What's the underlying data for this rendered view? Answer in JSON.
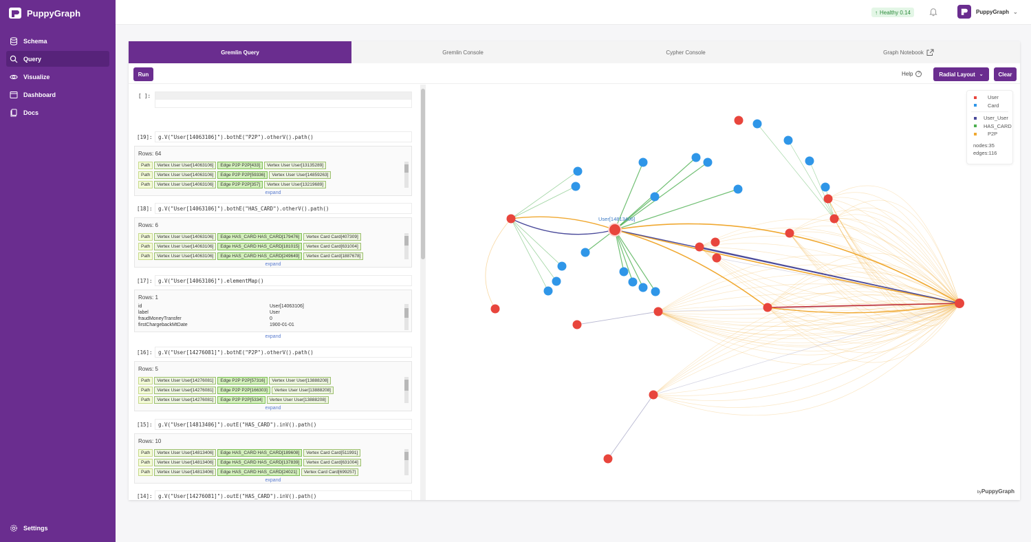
{
  "app": {
    "name": "PuppyGraph"
  },
  "sidebar": {
    "items": [
      {
        "label": "Schema",
        "icon": "database-icon"
      },
      {
        "label": "Query",
        "icon": "search-icon",
        "active": true
      },
      {
        "label": "Visualize",
        "icon": "eye-icon"
      },
      {
        "label": "Dashboard",
        "icon": "dashboard-icon"
      },
      {
        "label": "Docs",
        "icon": "docs-icon"
      }
    ],
    "settings_label": "Settings"
  },
  "header": {
    "health_label": "Healthy 0.14",
    "user_name": "PuppyGraph"
  },
  "tabs": [
    {
      "label": "Gremlin Query",
      "active": true
    },
    {
      "label": "Gremlin Console"
    },
    {
      "label": "Cypher Console"
    },
    {
      "label": "Graph Notebook"
    }
  ],
  "toolbar": {
    "run_label": "Run",
    "help_label": "Help",
    "layout_label": "Radial Layout",
    "clear_label": "Clear"
  },
  "queries": {
    "empty_prompt": "[ ]:",
    "expand_label": "expand",
    "q19": {
      "prompt": "[19]:",
      "command": "g.V(\"User[14063106]\").bothE(\"P2P\").otherV().path()",
      "rows": "Rows: 64",
      "lines": [
        [
          "Path",
          "Vertex User User[14063106]",
          "Edge P2P P2P[433]",
          "Vertex User User[13135289]"
        ],
        [
          "Path",
          "Vertex User User[14063106]",
          "Edge P2P P2P[59336]",
          "Vertex User User[14859263]"
        ],
        [
          "Path",
          "Vertex User User[14063106]",
          "Edge P2P P2P[357]",
          "Vertex User User[13219689]"
        ]
      ]
    },
    "q18": {
      "prompt": "[18]:",
      "command": "g.V(\"User[14063106]\").bothE(\"HAS_CARD\").otherV().path()",
      "rows": "Rows: 6",
      "lines": [
        [
          "Path",
          "Vertex User User[14063106]",
          "Edge HAS_CARD HAS_CARD[179476]",
          "Vertex Card Card[407309]"
        ],
        [
          "Path",
          "Vertex User User[14063106]",
          "Edge HAS_CARD HAS_CARD[181015]",
          "Vertex Card Card[631004]"
        ],
        [
          "Path",
          "Vertex User User[14063106]",
          "Edge HAS_CARD HAS_CARD[249649]",
          "Vertex Card Card[1887678]"
        ]
      ]
    },
    "q17": {
      "prompt": "[17]:",
      "command": "g.V(\"User[14063106]\").elementMap()",
      "rows": "Rows: 1",
      "kv": [
        {
          "k": "id",
          "v": "User[14063106]"
        },
        {
          "k": "label",
          "v": "User"
        },
        {
          "k": "fraudMoneyTransfer",
          "v": "0"
        },
        {
          "k": "firstChargebackMtDate",
          "v": "1900-01-01"
        }
      ]
    },
    "q16": {
      "prompt": "[16]:",
      "command": "g.V(\"User[14276081]\").bothE(\"P2P\").otherV().path()",
      "rows": "Rows: 5",
      "lines": [
        [
          "Path",
          "Vertex User User[14276081]",
          "Edge P2P P2P[57316]",
          "Vertex User User[13888208]"
        ],
        [
          "Path",
          "Vertex User User[14276081]",
          "Edge P2P P2P[166303]",
          "Vertex User User[13888208]"
        ],
        [
          "Path",
          "Vertex User User[14276081]",
          "Edge P2P P2P[5334]",
          "Vertex User User[13888208]"
        ]
      ]
    },
    "q15": {
      "prompt": "[15]:",
      "command": "g.V(\"User[14813406]\").outE(\"HAS_CARD\").inV().path()",
      "rows": "Rows: 10",
      "lines": [
        [
          "Path",
          "Vertex User User[14813406]",
          "Edge HAS_CARD HAS_CARD[189608]",
          "Vertex Card Card[511991]"
        ],
        [
          "Path",
          "Vertex User User[14813406]",
          "Edge HAS_CARD HAS_CARD[137839]",
          "Vertex Card Card[631004]"
        ],
        [
          "Path",
          "Vertex User User[14813406]",
          "Edge HAS_CARD HAS_CARD[24021]",
          "Vertex Card Card[699257]"
        ]
      ]
    },
    "q14": {
      "prompt": "[14]:",
      "command": "g.V(\"User[14276081]\").outE(\"HAS_CARD\").inV().path()"
    }
  },
  "graph": {
    "node_label": "User[14813406]",
    "legend": {
      "nodes": [
        {
          "label": "User",
          "color": "#e8453c"
        },
        {
          "label": "Card",
          "color": "#2f96e8"
        }
      ],
      "edges": [
        {
          "label": "User_User",
          "color": "#4a4a9a"
        },
        {
          "label": "HAS_CARD",
          "color": "#4caf50"
        },
        {
          "label": "P2P",
          "color": "#f0a830"
        }
      ],
      "nodes_count": "nodes:35",
      "edges_count": "edges:116"
    },
    "watermark_by": "by",
    "watermark_brand": "PuppyGraph"
  }
}
